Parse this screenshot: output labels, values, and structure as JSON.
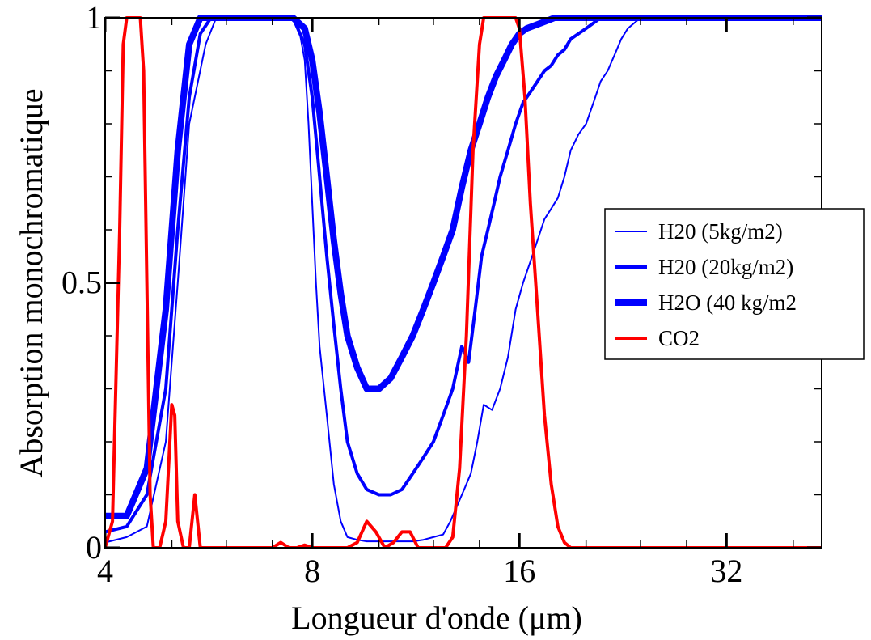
{
  "chart_data": {
    "type": "line",
    "xlabel": "Longueur d'onde (μm)",
    "ylabel": "Absorption monochromatique",
    "x_scale": "log2",
    "xlim": [
      4,
      44
    ],
    "ylim": [
      0,
      1
    ],
    "x_ticks": [
      4,
      8,
      16,
      32
    ],
    "x_tick_labels": [
      "4",
      "8",
      "16",
      "32"
    ],
    "y_ticks": [
      0,
      0.5,
      1
    ],
    "y_tick_labels": [
      "0",
      "0.5",
      "1"
    ],
    "grid": false,
    "legend_position": "right",
    "series": [
      {
        "name": "H20 (5kg/m2)",
        "color": "#0000ff",
        "x": [
          4.0,
          4.3,
          4.6,
          4.9,
          5.1,
          5.3,
          5.6,
          5.8,
          6.0,
          6.2,
          6.5,
          7.0,
          7.4,
          7.6,
          7.8,
          7.9,
          8.0,
          8.1,
          8.2,
          8.4,
          8.6,
          8.8,
          9.0,
          9.3,
          9.6,
          10,
          10.4,
          10.8,
          11.2,
          11.6,
          12.0,
          12.4,
          12.7,
          13.0,
          13.3,
          13.6,
          13.9,
          14.2,
          14.6,
          15.0,
          15.4,
          15.8,
          16.2,
          16.6,
          17.0,
          17.4,
          17.8,
          18.2,
          18.6,
          19.0,
          19.5,
          20,
          20.5,
          21,
          21.5,
          22,
          22.5,
          23,
          24,
          25,
          26,
          28,
          30,
          34,
          38,
          44
        ],
        "y": [
          0.01,
          0.02,
          0.04,
          0.2,
          0.5,
          0.8,
          0.95,
          1.0,
          1.0,
          1.0,
          1.0,
          1.0,
          1.0,
          1.0,
          0.92,
          0.8,
          0.65,
          0.5,
          0.38,
          0.25,
          0.12,
          0.05,
          0.02,
          0.015,
          0.012,
          0.012,
          0.012,
          0.012,
          0.012,
          0.015,
          0.02,
          0.025,
          0.05,
          0.08,
          0.11,
          0.14,
          0.2,
          0.27,
          0.26,
          0.3,
          0.36,
          0.45,
          0.5,
          0.54,
          0.58,
          0.62,
          0.64,
          0.66,
          0.7,
          0.75,
          0.78,
          0.8,
          0.84,
          0.88,
          0.9,
          0.93,
          0.96,
          0.98,
          1.0,
          1.0,
          1.0,
          1.0,
          1.0,
          1.0,
          1.0,
          1.0
        ],
        "stroke_width": 2
      },
      {
        "name": "H20 (20kg/m2)",
        "color": "#0000ff",
        "x": [
          4.0,
          4.3,
          4.6,
          4.9,
          5.1,
          5.3,
          5.5,
          5.7,
          6.0,
          6.5,
          7.0,
          7.5,
          7.8,
          8.0,
          8.2,
          8.4,
          8.6,
          8.8,
          9.0,
          9.3,
          9.6,
          10,
          10.4,
          10.8,
          11.2,
          11.6,
          12.0,
          12.4,
          12.8,
          13.2,
          13.5,
          13.8,
          14.1,
          14.4,
          14.7,
          15.0,
          15.4,
          15.8,
          16.2,
          16.6,
          17.0,
          17.4,
          17.8,
          18.2,
          18.6,
          19.0,
          19.5,
          20,
          20.5,
          21,
          22,
          23,
          24,
          26,
          28,
          32,
          38,
          44
        ],
        "y": [
          0.03,
          0.04,
          0.1,
          0.3,
          0.6,
          0.85,
          0.97,
          1.0,
          1.0,
          1.0,
          1.0,
          1.0,
          0.95,
          0.85,
          0.7,
          0.55,
          0.42,
          0.3,
          0.2,
          0.14,
          0.11,
          0.1,
          0.1,
          0.11,
          0.14,
          0.17,
          0.2,
          0.25,
          0.3,
          0.38,
          0.35,
          0.45,
          0.55,
          0.6,
          0.65,
          0.7,
          0.75,
          0.8,
          0.84,
          0.86,
          0.88,
          0.9,
          0.91,
          0.93,
          0.94,
          0.96,
          0.97,
          0.98,
          0.99,
          1.0,
          1.0,
          1.0,
          1.0,
          1.0,
          1.0,
          1.0,
          1.0,
          1.0
        ],
        "stroke_width": 4
      },
      {
        "name": "H2O (40 kg/m2",
        "color": "#0000ff",
        "x": [
          4.0,
          4.3,
          4.6,
          4.9,
          5.1,
          5.3,
          5.5,
          5.7,
          6.0,
          6.5,
          7.0,
          7.5,
          7.8,
          8.0,
          8.2,
          8.4,
          8.6,
          8.8,
          9.0,
          9.3,
          9.6,
          10,
          10.4,
          10.8,
          11.2,
          11.6,
          12.0,
          12.4,
          12.8,
          13.2,
          13.6,
          14.0,
          14.4,
          14.8,
          15.2,
          15.6,
          16.0,
          16.4,
          16.8,
          17.2,
          17.6,
          18.0,
          18.5,
          19,
          20,
          22,
          24,
          28,
          32,
          38,
          44
        ],
        "y": [
          0.06,
          0.06,
          0.15,
          0.45,
          0.75,
          0.95,
          1.0,
          1.0,
          1.0,
          1.0,
          1.0,
          1.0,
          0.98,
          0.92,
          0.82,
          0.7,
          0.58,
          0.48,
          0.4,
          0.34,
          0.3,
          0.3,
          0.32,
          0.36,
          0.4,
          0.45,
          0.5,
          0.55,
          0.6,
          0.68,
          0.75,
          0.8,
          0.85,
          0.89,
          0.92,
          0.95,
          0.97,
          0.98,
          0.985,
          0.99,
          0.995,
          1.0,
          1.0,
          1.0,
          1.0,
          1.0,
          1.0,
          1.0,
          1.0,
          1.0,
          1.0
        ],
        "stroke_width": 8
      },
      {
        "name": "CO2",
        "color": "#ff0000",
        "x": [
          4.0,
          4.1,
          4.2,
          4.25,
          4.3,
          4.4,
          4.5,
          4.55,
          4.6,
          4.65,
          4.7,
          4.8,
          4.9,
          5.0,
          5.05,
          5.1,
          5.2,
          5.3,
          5.35,
          5.4,
          5.5,
          5.6,
          6.0,
          7.0,
          7.2,
          7.4,
          7.6,
          7.8,
          8.0,
          8.5,
          9.0,
          9.3,
          9.6,
          9.9,
          10.2,
          10.5,
          10.8,
          11.1,
          11.4,
          11.8,
          12.2,
          12.5,
          12.8,
          13.1,
          13.4,
          13.7,
          14.0,
          14.2,
          14.5,
          15.0,
          15.5,
          15.8,
          16.0,
          16.3,
          16.6,
          17.0,
          17.4,
          17.8,
          18.2,
          18.6,
          19.0,
          19.5,
          20,
          22,
          26,
          32,
          44
        ],
        "y": [
          0.0,
          0.05,
          0.6,
          0.95,
          1.0,
          1.0,
          1.0,
          0.9,
          0.5,
          0.1,
          0.0,
          0.0,
          0.05,
          0.27,
          0.25,
          0.05,
          0.0,
          0.0,
          0.05,
          0.1,
          0.0,
          0.0,
          0.0,
          0.0,
          0.01,
          0.0,
          0.0,
          0.005,
          0.0,
          0.0,
          0.0,
          0.01,
          0.05,
          0.03,
          0.0,
          0.01,
          0.03,
          0.03,
          0.0,
          0.0,
          0.0,
          0.0,
          0.02,
          0.15,
          0.4,
          0.75,
          0.95,
          1.0,
          1.0,
          1.0,
          1.0,
          1.0,
          0.98,
          0.85,
          0.65,
          0.45,
          0.25,
          0.12,
          0.04,
          0.01,
          0.0,
          0.0,
          0.0,
          0.0,
          0.0,
          0.0,
          0.0
        ],
        "stroke_width": 4
      }
    ]
  }
}
